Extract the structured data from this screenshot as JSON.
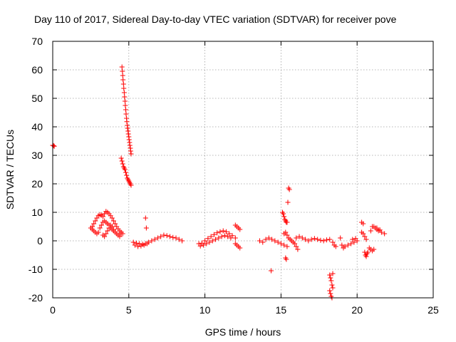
{
  "chart_data": {
    "type": "scatter",
    "title": "Day 110 of 2017, Sidereal Day-to-day VTEC variation (SDTVAR) for receiver pove",
    "xlabel": "GPS time / hours",
    "ylabel": "SDTVAR / TECUs",
    "xlim": [
      0,
      25
    ],
    "ylim": [
      -20,
      70
    ],
    "xticks": [
      0,
      5,
      10,
      15,
      20,
      25
    ],
    "yticks": [
      -20,
      -10,
      0,
      10,
      20,
      30,
      40,
      50,
      60,
      70
    ],
    "grid": true,
    "marker": "+",
    "color": "#ff0000",
    "series": [
      {
        "name": "SDTVAR",
        "points": [
          [
            0.0,
            33.5
          ],
          [
            0.05,
            33.4
          ],
          [
            0.1,
            33.2
          ],
          [
            4.55,
            61.0
          ],
          [
            4.58,
            59.5
          ],
          [
            4.6,
            58.0
          ],
          [
            4.62,
            56.5
          ],
          [
            4.65,
            55.0
          ],
          [
            4.67,
            53.5
          ],
          [
            4.7,
            52.0
          ],
          [
            4.72,
            50.5
          ],
          [
            4.75,
            49.0
          ],
          [
            4.77,
            47.5
          ],
          [
            4.8,
            46.0
          ],
          [
            4.82,
            44.5
          ],
          [
            4.85,
            43.0
          ],
          [
            4.87,
            41.8
          ],
          [
            4.9,
            40.5
          ],
          [
            4.92,
            39.5
          ],
          [
            4.95,
            38.5
          ],
          [
            4.97,
            37.5
          ],
          [
            5.0,
            36.5
          ],
          [
            5.02,
            35.5
          ],
          [
            5.05,
            34.5
          ],
          [
            5.07,
            33.5
          ],
          [
            5.1,
            32.5
          ],
          [
            5.12,
            31.5
          ],
          [
            5.15,
            30.5
          ],
          [
            4.5,
            29.0
          ],
          [
            4.55,
            28.0
          ],
          [
            4.6,
            27.0
          ],
          [
            4.65,
            26.0
          ],
          [
            4.7,
            25.5
          ],
          [
            4.75,
            25.0
          ],
          [
            4.8,
            24.0
          ],
          [
            4.85,
            23.0
          ],
          [
            4.9,
            22.0
          ],
          [
            4.95,
            21.5
          ],
          [
            5.0,
            21.0
          ],
          [
            5.05,
            20.5
          ],
          [
            5.1,
            20.0
          ],
          [
            5.15,
            19.5
          ],
          [
            2.5,
            4.5
          ],
          [
            2.6,
            5.0
          ],
          [
            2.7,
            6.0
          ],
          [
            2.8,
            7.0
          ],
          [
            2.9,
            8.0
          ],
          [
            3.0,
            8.8
          ],
          [
            3.1,
            9.2
          ],
          [
            3.2,
            9.0
          ],
          [
            3.3,
            8.5
          ],
          [
            3.4,
            9.5
          ],
          [
            3.5,
            10.3
          ],
          [
            3.6,
            10.0
          ],
          [
            3.7,
            9.5
          ],
          [
            3.8,
            8.8
          ],
          [
            3.9,
            8.0
          ],
          [
            4.0,
            7.0
          ],
          [
            4.1,
            6.0
          ],
          [
            4.2,
            5.0
          ],
          [
            4.3,
            4.2
          ],
          [
            4.4,
            3.5
          ],
          [
            4.5,
            3.0
          ],
          [
            4.6,
            2.5
          ],
          [
            2.6,
            4.0
          ],
          [
            2.7,
            3.5
          ],
          [
            2.8,
            3.0
          ],
          [
            2.9,
            2.5
          ],
          [
            3.0,
            3.0
          ],
          [
            3.1,
            4.5
          ],
          [
            3.2,
            5.5
          ],
          [
            3.3,
            6.5
          ],
          [
            3.4,
            7.0
          ],
          [
            3.5,
            6.5
          ],
          [
            3.6,
            6.0
          ],
          [
            3.7,
            5.5
          ],
          [
            3.8,
            4.5
          ],
          [
            3.9,
            4.0
          ],
          [
            4.0,
            3.5
          ],
          [
            3.3,
            2.0
          ],
          [
            3.4,
            1.5
          ],
          [
            3.5,
            2.5
          ],
          [
            3.6,
            3.5
          ],
          [
            3.7,
            4.5
          ],
          [
            3.8,
            5.5
          ],
          [
            3.9,
            5.0
          ],
          [
            4.0,
            4.0
          ],
          [
            4.1,
            3.0
          ],
          [
            4.2,
            2.5
          ],
          [
            4.3,
            2.0
          ],
          [
            4.4,
            1.5
          ],
          [
            4.5,
            2.5
          ],
          [
            6.1,
            8.0
          ],
          [
            6.15,
            4.5
          ],
          [
            5.3,
            -0.5
          ],
          [
            5.5,
            -0.8
          ],
          [
            5.7,
            -1.0
          ],
          [
            5.9,
            -1.2
          ],
          [
            6.1,
            -1.0
          ],
          [
            6.3,
            -0.5
          ],
          [
            6.5,
            0.0
          ],
          [
            6.7,
            0.5
          ],
          [
            6.9,
            1.0
          ],
          [
            7.1,
            1.5
          ],
          [
            7.3,
            2.0
          ],
          [
            7.5,
            1.8
          ],
          [
            7.7,
            1.5
          ],
          [
            7.9,
            1.2
          ],
          [
            8.1,
            1.0
          ],
          [
            8.3,
            0.5
          ],
          [
            8.5,
            0.0
          ],
          [
            5.4,
            -1.5
          ],
          [
            5.6,
            -2.0
          ],
          [
            5.8,
            -1.8
          ],
          [
            6.0,
            -1.5
          ],
          [
            6.2,
            -1.0
          ],
          [
            9.6,
            -1.0
          ],
          [
            9.8,
            -0.8
          ],
          [
            10.0,
            0.0
          ],
          [
            10.2,
            0.8
          ],
          [
            10.4,
            1.5
          ],
          [
            10.6,
            2.2
          ],
          [
            10.8,
            2.8
          ],
          [
            11.0,
            3.2
          ],
          [
            11.2,
            3.5
          ],
          [
            11.4,
            3.2
          ],
          [
            11.6,
            2.5
          ],
          [
            11.8,
            1.8
          ],
          [
            12.0,
            1.0
          ],
          [
            9.7,
            -1.8
          ],
          [
            9.9,
            -1.5
          ],
          [
            10.1,
            -1.0
          ],
          [
            10.3,
            -0.5
          ],
          [
            10.5,
            0.0
          ],
          [
            10.7,
            0.5
          ],
          [
            10.9,
            1.0
          ],
          [
            11.1,
            1.5
          ],
          [
            11.3,
            1.8
          ],
          [
            11.5,
            1.5
          ],
          [
            11.7,
            1.0
          ],
          [
            12.0,
            5.5
          ],
          [
            12.1,
            5.0
          ],
          [
            12.2,
            4.5
          ],
          [
            12.3,
            4.0
          ],
          [
            12.0,
            -1.0
          ],
          [
            12.1,
            -1.5
          ],
          [
            12.2,
            -2.0
          ],
          [
            12.3,
            -2.5
          ],
          [
            13.6,
            0.0
          ],
          [
            13.8,
            -0.5
          ],
          [
            14.0,
            0.5
          ],
          [
            14.2,
            1.0
          ],
          [
            14.4,
            0.5
          ],
          [
            14.6,
            0.0
          ],
          [
            14.8,
            -0.5
          ],
          [
            15.0,
            -1.0
          ],
          [
            15.2,
            -1.5
          ],
          [
            15.4,
            -2.0
          ],
          [
            14.35,
            -10.5
          ],
          [
            15.1,
            10.0
          ],
          [
            15.15,
            9.5
          ],
          [
            15.2,
            8.5
          ],
          [
            15.25,
            7.5
          ],
          [
            15.3,
            7.0
          ],
          [
            15.35,
            6.5
          ],
          [
            15.4,
            6.5
          ],
          [
            15.5,
            18.5
          ],
          [
            15.55,
            18.0
          ],
          [
            15.45,
            13.5
          ],
          [
            15.2,
            2.5
          ],
          [
            15.3,
            3.0
          ],
          [
            15.4,
            2.0
          ],
          [
            15.5,
            1.0
          ],
          [
            15.6,
            0.5
          ],
          [
            15.7,
            0.0
          ],
          [
            15.8,
            -0.5
          ],
          [
            15.9,
            -1.0
          ],
          [
            16.0,
            -2.0
          ],
          [
            16.1,
            -3.0
          ],
          [
            15.3,
            -6.0
          ],
          [
            15.35,
            -6.5
          ],
          [
            16.0,
            1.0
          ],
          [
            16.2,
            1.5
          ],
          [
            16.4,
            1.0
          ],
          [
            16.6,
            0.5
          ],
          [
            16.8,
            0.0
          ],
          [
            17.0,
            0.5
          ],
          [
            17.2,
            0.8
          ],
          [
            17.4,
            0.5
          ],
          [
            17.6,
            0.2
          ],
          [
            17.8,
            0.0
          ],
          [
            18.0,
            0.3
          ],
          [
            18.2,
            0.5
          ],
          [
            18.4,
            -0.5
          ],
          [
            18.5,
            -1.5
          ],
          [
            18.6,
            -2.0
          ],
          [
            18.2,
            -12.0
          ],
          [
            18.25,
            -13.0
          ],
          [
            18.3,
            -14.0
          ],
          [
            18.35,
            -15.5
          ],
          [
            18.4,
            -16.5
          ],
          [
            18.2,
            -17.5
          ],
          [
            18.25,
            -18.5
          ],
          [
            18.3,
            -19.5
          ],
          [
            18.35,
            -20.0
          ],
          [
            18.4,
            -11.5
          ],
          [
            18.9,
            1.0
          ],
          [
            19.0,
            -1.5
          ],
          [
            19.1,
            -2.5
          ],
          [
            19.2,
            -2.0
          ],
          [
            19.4,
            -1.5
          ],
          [
            19.6,
            -1.0
          ],
          [
            19.8,
            -0.5
          ],
          [
            20.0,
            0.0
          ],
          [
            19.7,
            0.5
          ],
          [
            19.9,
            0.8
          ],
          [
            20.3,
            6.5
          ],
          [
            20.4,
            6.0
          ],
          [
            20.3,
            3.0
          ],
          [
            20.4,
            2.5
          ],
          [
            20.5,
            1.5
          ],
          [
            20.6,
            0.5
          ],
          [
            20.5,
            -4.0
          ],
          [
            20.55,
            -5.0
          ],
          [
            20.6,
            -5.5
          ],
          [
            20.65,
            -4.5
          ],
          [
            20.7,
            -4.0
          ],
          [
            20.8,
            -2.5
          ],
          [
            20.9,
            -3.0
          ],
          [
            21.0,
            -3.5
          ],
          [
            21.1,
            -3.0
          ],
          [
            20.9,
            3.5
          ],
          [
            21.0,
            5.0
          ],
          [
            21.1,
            5.0
          ],
          [
            21.2,
            4.5
          ],
          [
            21.3,
            4.0
          ],
          [
            21.4,
            3.5
          ],
          [
            21.6,
            3.0
          ],
          [
            21.8,
            2.5
          ],
          [
            21.3,
            4.5
          ],
          [
            21.5,
            3.8
          ]
        ]
      }
    ]
  }
}
